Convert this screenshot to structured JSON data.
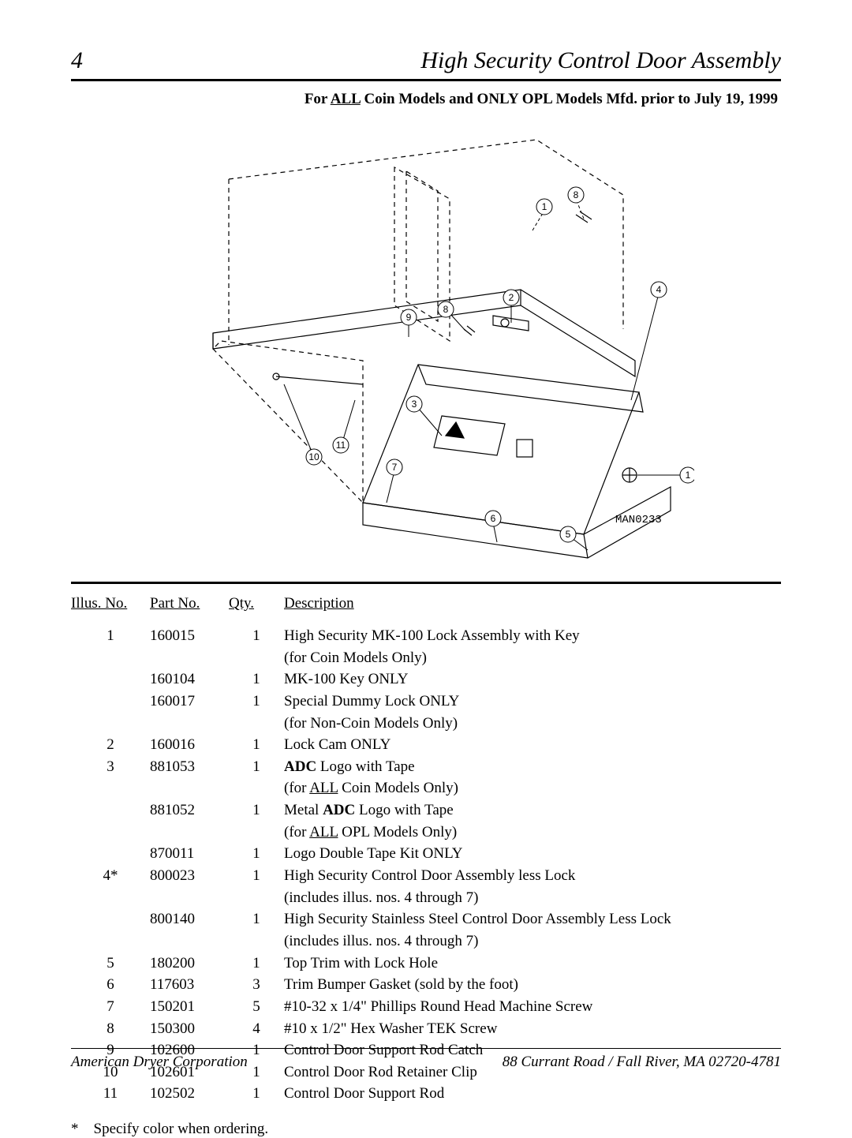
{
  "page": {
    "number": "4",
    "title": "High Security Control Door Assembly",
    "subtitle_prefix": "For ",
    "subtitle_all": "ALL",
    "subtitle_rest": " Coin Models and ONLY OPL Models Mfd. prior to July 19, 1999"
  },
  "diagram": {
    "label": "MAN0233",
    "callouts": [
      "1",
      "2",
      "3",
      "4",
      "5",
      "6",
      "7",
      "8",
      "9",
      "10",
      "11"
    ],
    "stroke": "#000000",
    "line_width": 1.2,
    "font_family": "monospace",
    "label_font_size": 14
  },
  "table": {
    "headers": {
      "illus": "Illus. No.",
      "part": "Part No.",
      "qty": "Qty.",
      "desc": "Description"
    },
    "rows": [
      {
        "illus": "1",
        "part": "160015",
        "qty": "1",
        "desc": "High Security MK-100 Lock Assembly with Key",
        "desc2": "(for Coin Models Only)"
      },
      {
        "illus": "",
        "part": "160104",
        "qty": "1",
        "desc": "MK-100 Key ONLY"
      },
      {
        "illus": "",
        "part": "160017",
        "qty": "1",
        "desc": "Special Dummy Lock ONLY",
        "desc2": "(for Non-Coin Models Only)"
      },
      {
        "illus": "2",
        "part": "160016",
        "qty": "1",
        "desc": "Lock Cam ONLY"
      },
      {
        "illus": "3",
        "part": "881053",
        "qty": "1",
        "desc_html": "<b>ADC</b> Logo with Tape",
        "desc2_html": "(for <u>ALL</u> Coin Models Only)"
      },
      {
        "illus": "",
        "part": "881052",
        "qty": "1",
        "desc_html": "Metal <b>ADC</b> Logo with Tape",
        "desc2_html": "(for <u>ALL</u> OPL Models Only)"
      },
      {
        "illus": "",
        "part": "870011",
        "qty": "1",
        "desc": "Logo Double Tape Kit ONLY"
      },
      {
        "illus": "4*",
        "part": "800023",
        "qty": "1",
        "desc": "High Security Control Door Assembly less Lock",
        "desc2": "(includes illus. nos. 4 through 7)"
      },
      {
        "illus": "",
        "part": "800140",
        "qty": "1",
        "desc": "High Security Stainless Steel Control Door Assembly Less Lock",
        "desc2": "(includes illus. nos. 4 through 7)"
      },
      {
        "illus": "5",
        "part": "180200",
        "qty": "1",
        "desc": "Top Trim with Lock Hole"
      },
      {
        "illus": "6",
        "part": "117603",
        "qty": "3",
        "desc": "Trim Bumper Gasket (sold by the foot)"
      },
      {
        "illus": "7",
        "part": "150201",
        "qty": "5",
        "desc": "#10-32 x 1/4\" Phillips Round Head Machine Screw"
      },
      {
        "illus": "8",
        "part": "150300",
        "qty": "4",
        "desc": "#10 x 1/2\" Hex Washer TEK Screw"
      },
      {
        "illus": "9",
        "part": "102600",
        "qty": "1",
        "desc": "Control Door Support Rod Catch"
      },
      {
        "illus": "10",
        "part": "102601",
        "qty": "1",
        "desc": "Control Door Rod Retainer Clip"
      },
      {
        "illus": "11",
        "part": "102502",
        "qty": "1",
        "desc": "Control Door Support Rod"
      }
    ]
  },
  "footnote": {
    "mark": "*",
    "text": "Specify color when ordering."
  },
  "footer": {
    "left": "American Dryer Corporation",
    "right": "88 Currant Road / Fall River, MA 02720-4781"
  }
}
